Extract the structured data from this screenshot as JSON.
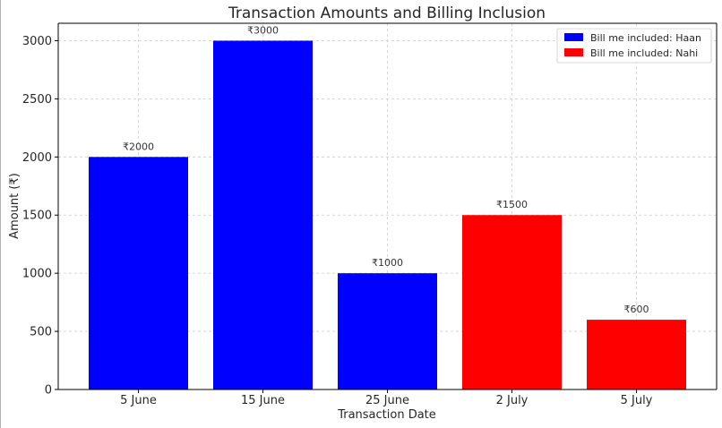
{
  "chart_data": {
    "type": "bar",
    "title": "Transaction Amounts and Billing Inclusion",
    "xlabel": "Transaction Date",
    "ylabel": "Amount (₹)",
    "categories": [
      "5 June",
      "15 June",
      "25 June",
      "2 July",
      "5 July"
    ],
    "values": [
      2000,
      3000,
      1000,
      1500,
      600
    ],
    "data_labels": [
      "₹2000",
      "₹3000",
      "₹1000",
      "₹1500",
      "₹600"
    ],
    "bar_groups": [
      "Haan",
      "Haan",
      "Haan",
      "Nahi",
      "Nahi"
    ],
    "ylim": [
      0,
      3150
    ],
    "yticks": [
      0,
      500,
      1000,
      1500,
      2000,
      2500,
      3000
    ],
    "ytick_labels": [
      "0",
      "500",
      "1000",
      "1500",
      "2000",
      "2500",
      "3000"
    ],
    "grid": true,
    "legend_position": "top-right",
    "legend": [
      {
        "label": "Bill me included: Haan",
        "key": "Haan",
        "color": "#0000ff"
      },
      {
        "label": "Bill me included: Nahi",
        "key": "Nahi",
        "color": "#ff0000"
      }
    ]
  }
}
